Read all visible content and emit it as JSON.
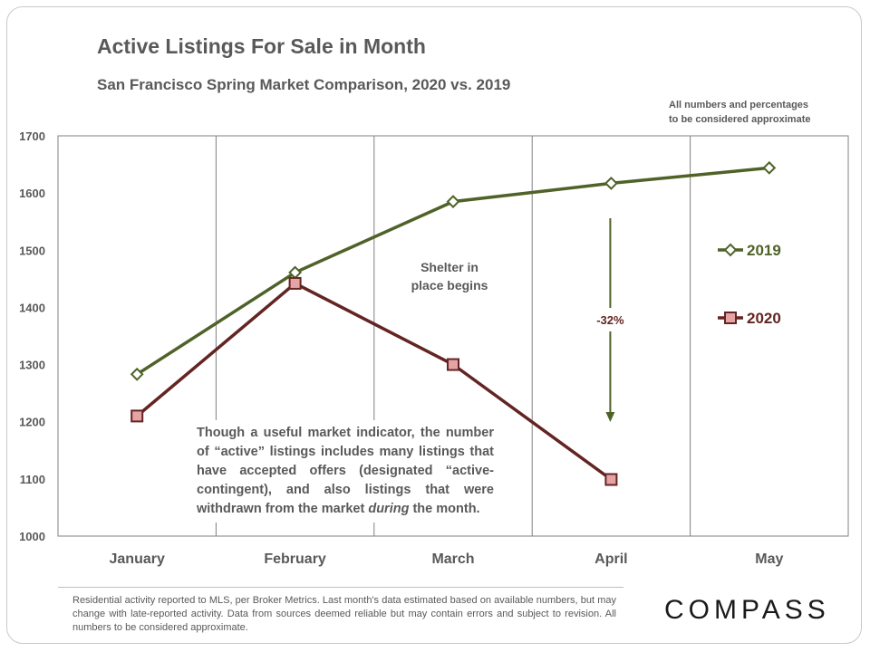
{
  "chart_data": {
    "type": "line",
    "title": "Active Listings For Sale in Month",
    "subtitle": "San Francisco Spring Market Comparison,  2020 vs. 2019",
    "note": [
      "All numbers and percentages",
      "to be considered approximate"
    ],
    "categories": [
      "January",
      "February",
      "March",
      "April",
      "May"
    ],
    "ylim": [
      1000,
      1700
    ],
    "yticks": [
      1000,
      1100,
      1200,
      1300,
      1400,
      1500,
      1600,
      1700
    ],
    "grid": true,
    "legend_position": "right",
    "series": [
      {
        "name": "2019",
        "color": "#4f6228",
        "marker": "diamond",
        "values": [
          1283,
          1461,
          1585,
          1617,
          1644
        ]
      },
      {
        "name": "2020",
        "color": "#632523",
        "marker": "square",
        "values": [
          1210,
          1442,
          1300,
          1099,
          null
        ]
      }
    ],
    "annotations": {
      "shelter": [
        "Shelter in",
        "place begins"
      ],
      "change_label": "-32%"
    }
  },
  "callout": {
    "before": "Though a useful market indicator, the number of “active” listings includes many listings that have accepted offers (designated “active-contingent), and also listings that were withdrawn from the market ",
    "emphasis": "during",
    "after": " the month."
  },
  "footer": "Residential activity reported to MLS, per Broker Metrics. Last month's data estimated based on available numbers, but may change with late-reported activity. Data from sources deemed reliable but may contain errors and subject to revision. All numbers to be considered approximate.",
  "logo": "COMPASS",
  "colors": {
    "series_2019": "#4f6228",
    "series_2020": "#632523",
    "marker_2020_fill": "#e6a3a3",
    "text": "#595959"
  }
}
